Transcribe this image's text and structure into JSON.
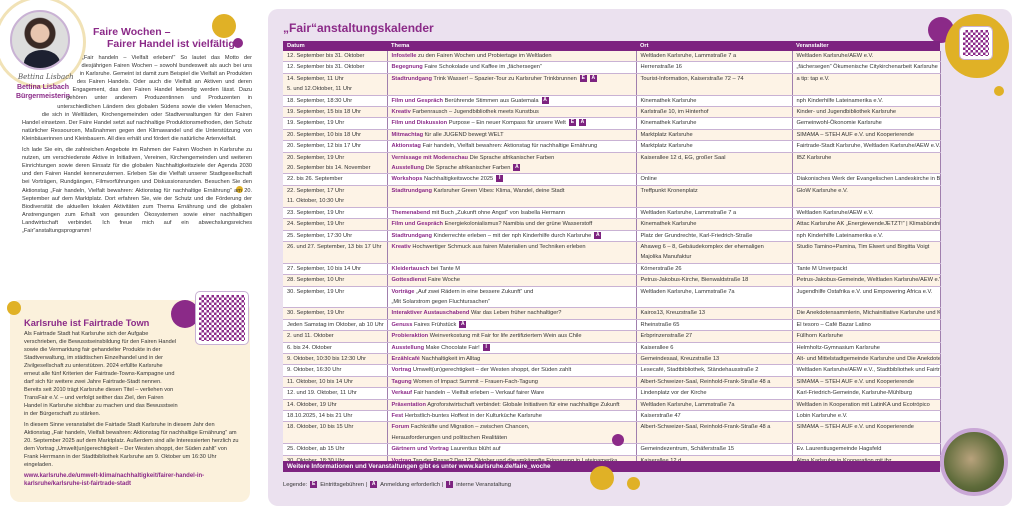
{
  "intro": {
    "signature": "Bettina Lisbach",
    "name": "Bettina Lisbach",
    "role": "Bürgermeisterin",
    "title_line1": "Faire Wochen –",
    "title_line2": "Fairer Handel ist vielfältig",
    "p1": "„Fair handeln – Vielfalt erleben!“ So lautet das Motto der diesjährigen Fairen Wochen – sowohl bundesweit als auch bei uns in Karlsruhe. Gemeint ist damit zum Beispiel die Vielfalt an Produkten des Fairen Handels. Oder auch die Vielfalt an Aktiven und deren Engagement, das den Fairen Handel lebendig werden lässt. Dazu gehören unter anderem Produzentinnen und Produzenten in unterschiedlichen Ländern des globalen Südens sowie die vielen Menschen, die sich in Weltläden, Kirchengemeinden oder Stadtverwaltungen für den Fairen Handel einsetzen. Der Faire Handel setzt auf nachhaltige Produktionsmethoden, den Schutz natürlicher Ressourcen, Maßnahmen gegen den Klimawandel und die Unterstützung von Kleinbäuerinnen und Kleinbauern. All dies erhält und fördert die natürliche Artenvielfalt.",
    "p2": "Ich lade Sie ein, die zahlreichen Angebote im Rahmen der Fairen Wochen in Karlsruhe zu nutzen, um verschiedenste Aktive in Initiativen, Vereinen, Kirchengemeinden und weiteren Einrichtungen sowie deren Einsatz für die globalen Nachhaltigkeitsziele der Agenda 2030 und den Fairen Handel kennenzulernen. Erleben Sie die Vielfalt unserer Stadtgesellschaft bei Vorträgen, Rundgängen, Filmvorführungen und Diskussionsrunden. Besuchen Sie den Aktionstag „Fair handeln, Vielfalt bewahren: Aktionstag für nachhaltige Ernährung“ am 20. September auf dem Marktplatz. Dort erfahren Sie, wie der Schutz und die Förderung der Biodiversität die aktuellen lokalen Aktivitäten zum Thema Ernährung und die globalen Anstrengungen zum Erhalt von gesunden Ökosystemen sowie einer nachhaltigen Landwirtschaft verbindet. Ich freue mich auf ein abwechslungsreiches „Fair“anstaltungsprogramm!"
  },
  "fairtrade": {
    "title": "Karlsruhe ist Fairtrade Town",
    "p1": "Als Fairtrade Stadt hat Karlsruhe sich der Aufgabe verschrieben, die Bewusstseinsbildung für den Fairen Handel sowie die Vermarktung fair gehandelter Produkte in der Stadtverwaltung, im städtischen Einzelhandel und in der Zivilgesellschaft zu unterstützen. 2024 erfüllte Karlsruhe erneut alle fünf Kriterien der Fairtrade-Towns-Kampagne und darf sich für weitere zwei Jahre Fairtrade-Stadt nennen. Bereits seit 2010 trägt Karlsruhe diesen Titel – verliehen von TransFair e.V. – und verfolgt seither das Ziel, den Fairen Handel in Karlsruhe sichtbar zu machen und das Bewusstsein in der Bürgerschaft zu stärken.",
    "p2": "In diesem Sinne veranstaltet die Fairtade Stadt Karlsruhe in diesem Jahr den Aktionstag „Fair handeln, Vielfalt bewahren: Aktionstag für nachhaltige Ernährung“ am 20. September 2025 auf dem Marktplatz. Außerdem sind alle Interessierten herzlich zu dem Vortrag „Umwelt(un)gerechtigkeit – Der Westen shoppt, der Süden zahlt“ von Frank Herrmann in der Stadtbibliothek Karlsruhe am 9. Oktober um 16:30 Uhr eingeladen.",
    "url": "www.karlsruhe.de/umwelt-klima/nachhaltigkeit/fairer-handel-in-karlsruhe/karlsruhe-ist-fairtrade-stadt"
  },
  "colors": {
    "accent": "#7d2380",
    "gold": "#e0b126",
    "background": "#ebe1ef",
    "row": "#fdf3e6"
  },
  "calendar": {
    "title": "„Fair“anstaltungskalender",
    "columns": [
      "Datum",
      "Thema",
      "Ort",
      "Veranstalter"
    ],
    "rows": [
      {
        "date": [
          "12. September bis 31. Oktober"
        ],
        "thema": [
          {
            "kw": "Infostelle",
            "text": " zu den Fairen Wochen und Probiertage im Weltladen",
            "badges": []
          }
        ],
        "ort": [
          "Weltladen Karlsruhe, Lammstraße 7 a"
        ],
        "org": [
          "Weltladen Karlsruhe/AEW e.V."
        ]
      },
      {
        "date": [
          "12. September bis 31. Oktober"
        ],
        "thema": [
          {
            "kw": "Begegnung",
            "text": " Faire Schokolade und Kaffee im „fächersegen“",
            "badges": []
          }
        ],
        "ort": [
          "Herrenstraße 16"
        ],
        "org": [
          "„fächersegen“ Ökumenische Citykirchenarbeit Karlsruhe"
        ]
      },
      {
        "date": [
          "14. September, 11 Uhr",
          "5. und 12.Oktober, 11 Uhr"
        ],
        "thema": [
          {
            "kw": "Stadtrundgang",
            "text": " Trink Wasser! – Spazier-Tour zu Karlsruher Trinkbrunnen",
            "badges": [
              "E",
              "A"
            ]
          }
        ],
        "ort": [
          "Tourist-Information, Kaiserstraße 72 – 74"
        ],
        "org": [
          "a tip: tap e.V."
        ]
      },
      {
        "date": [
          "18. September, 18:30 Uhr"
        ],
        "thema": [
          {
            "kw": "Film und Gespräch",
            "text": " Berührende Stimmen aus Guatemala",
            "badges": [
              "A"
            ]
          }
        ],
        "ort": [
          "Kinemathek Karlsruhe"
        ],
        "org": [
          "nph Kinderhilfe Lateinamerika e.V."
        ]
      },
      {
        "date": [
          "19. September, 15 bis 18 Uhr"
        ],
        "thema": [
          {
            "kw": "Kreativ",
            "text": " Farbenrausch – Jugendbibliothek meets Kunstbus",
            "badges": []
          }
        ],
        "ort": [
          "Karlstraße 10, im Hinterhof"
        ],
        "org": [
          "Kinder- und Jugendbibliothek Karlsruhe"
        ]
      },
      {
        "date": [
          "19. September, 19 Uhr"
        ],
        "thema": [
          {
            "kw": "Film und Diskussion",
            "text": " Purpose – Ein neuer Kompass für unsere Welt",
            "badges": [
              "E",
              "A"
            ]
          }
        ],
        "ort": [
          "Kinemathek Karlsruhe"
        ],
        "org": [
          "Gemeinwohl-Ökonomie Karlsruhe"
        ]
      },
      {
        "date": [
          "20. September, 10 bis 18 Uhr"
        ],
        "thema": [
          {
            "kw": "Mitmachtag",
            "text": " für alle JUGEND bewegt WELT",
            "badges": []
          }
        ],
        "ort": [
          "Marktplatz Karlsruhe"
        ],
        "org": [
          "SIMAMA – STEH AUF e.V. und Kooperierende"
        ]
      },
      {
        "date": [
          "20. September, 12 bis 17 Uhr"
        ],
        "thema": [
          {
            "kw": "Aktionstag",
            "text": " Fair handeln, Vielfalt bewahren: Aktionstag für nachhaltige Ernährung",
            "badges": []
          }
        ],
        "ort": [
          "Marktplatz Karlsruhe"
        ],
        "org": [
          "Fairtrade-Stadt Karlsruhe, Weltladen Karlsruhe/AEW e.V."
        ]
      },
      {
        "date": [
          "20. September, 19 Uhr",
          "20. September bis 14. November"
        ],
        "thema": [
          {
            "kw": "Vernissage mit Modenschau",
            "text": " Die Sprache afrikanischer Farben",
            "badges": []
          },
          {
            "kw": "Ausstellung",
            "text": " Die Sprache afrikanischer Farben",
            "badges": [
              "A"
            ]
          }
        ],
        "ort": [
          "Kaiserallee 12 d, EG, großer Saal"
        ],
        "org": [
          "IBZ Karlsruhe"
        ]
      },
      {
        "date": [
          "22. bis 26. September"
        ],
        "thema": [
          {
            "kw": "Workshops",
            "text": " Nachhaltigkeitswoche 2025",
            "badges": [
              "I"
            ]
          }
        ],
        "ort": [
          "Online"
        ],
        "org": [
          "Diakonisches Werk der Evangelischen Landeskirche in Baden e.V."
        ]
      },
      {
        "date": [
          "22.  September, 17 Uhr",
          "11. Oktober, 10:30 Uhr"
        ],
        "thema": [
          {
            "kw": "Stadtrundgang",
            "text": " Karlsruher Green Vibes: Klima, Wandel, deine Stadt",
            "badges": []
          }
        ],
        "ort": [
          "Treffpunkt Kronenplatz"
        ],
        "org": [
          "GloW Karlsruhe e.V."
        ]
      },
      {
        "date": [
          "23. September, 19 Uhr"
        ],
        "thema": [
          {
            "kw": "Themenabend",
            "text": " mit Buch „Zukunft ohne Angst“ von Isabella Hermann",
            "badges": []
          }
        ],
        "ort": [
          "Weltladen Karlsruhe, Lammstraße 7 a"
        ],
        "org": [
          "Weltladen Karlsruhe/AEW e.V."
        ]
      },
      {
        "date": [
          "24. September, 19 Uhr"
        ],
        "thema": [
          {
            "kw": "Film und Gespräch",
            "text": " Energiekolonialismus? Namibia und der grüne Wasserstoff",
            "badges": []
          }
        ],
        "ort": [
          "Kinemathek Karlsruhe"
        ],
        "org": [
          "Attac Karlsruhe AK „EnergiewendeJETZT!“ | Klimabündnis Karlsruhe | Kinemathek"
        ]
      },
      {
        "date": [
          "25. September, 17:30 Uhr"
        ],
        "thema": [
          {
            "kw": "Stadtrundgang",
            "text": " Kinderrechte erleben – mit der nph Kinderhilfe durch Karlsruhe",
            "badges": [
              "A"
            ]
          }
        ],
        "ort": [
          "Platz der Grundrechte, Karl-Friedrich-Straße"
        ],
        "org": [
          "nph Kinderhilfe Lateinamerika e.V."
        ]
      },
      {
        "date": [
          "26. und 27. September, 13 bis 17 Uhr"
        ],
        "thema": [
          {
            "kw": "Kreativ",
            "text": " Hochwertiger Schmuck aus fairen Materialien und Techniken erleben",
            "badges": []
          }
        ],
        "ort": [
          "Ahaweg 6 – 8, Gebäudekomplex der ehemaligen",
          "Majolika Manufaktur"
        ],
        "org": [
          "Studio Tamino+Pamina, Tim Elwert und Birgitta Voigt"
        ]
      },
      {
        "date": [
          "27. September, 10 bis 14 Uhr"
        ],
        "thema": [
          {
            "kw": "Kleidertausch",
            "text": " bei Tante M",
            "badges": []
          }
        ],
        "ort": [
          "Körnerstraße 26"
        ],
        "org": [
          "Tante M Unverpackt"
        ]
      },
      {
        "date": [
          "28. September, 10 Uhr"
        ],
        "thema": [
          {
            "kw": "Gottesdienst",
            "text": " Faire Woche",
            "badges": []
          }
        ],
        "ort": [
          "Petrus-Jakobus-Kirche, Bienwaldstraße 18"
        ],
        "org": [
          "Petrus-Jakobus-Gemeinde, Weltladen Karlsruhe/AEW e.V."
        ]
      },
      {
        "date": [
          "30. September, 19 Uhr"
        ],
        "thema": [
          {
            "kw": "Vorträge",
            "text": " „Auf zwei Rädern in eine bessere Zukunft“ und",
            "badges": []
          },
          {
            "kw": "",
            "text": "„Mit Solarstrom gegen Fluchtursachen“",
            "badges": []
          }
        ],
        "ort": [
          "Weltladen Karlsruhe, Lammstraße 7a"
        ],
        "org": [
          "Jugendhilfe Ostafrika e.V. und Empowering Africa e.V."
        ]
      },
      {
        "date": [
          "30. September, 19 Uhr"
        ],
        "thema": [
          {
            "kw": "Interaktiver Austauschabend",
            "text": " War das Leben früher nachhaltiger?",
            "badges": []
          }
        ],
        "ort": [
          "Kairos13, Kreuzstraße 13"
        ],
        "org": [
          "Die Anekdotensammlerin, Michainitiative Karlsruhe und Kairos13"
        ]
      },
      {
        "date": [
          "Jeden Samstag im Oktober, ab 10 Uhr"
        ],
        "thema": [
          {
            "kw": "Genuss",
            "text": " Faires Frühstück",
            "badges": [
              "A"
            ]
          }
        ],
        "ort": [
          "Rheinstraße 65"
        ],
        "org": [
          "El tesoro – Café Bazar Latino"
        ]
      },
      {
        "date": [
          "2. und 11. Oktober"
        ],
        "thema": [
          {
            "kw": "Probieraktion",
            "text": " Weinverkostung mit Fair for life zertifiziertem Wein aus Chile",
            "badges": []
          }
        ],
        "ort": [
          "Erbprinzenstraße 27"
        ],
        "org": [
          "Füllhorn Karlsruhe"
        ]
      },
      {
        "date": [
          "6. bis 24. Oktober"
        ],
        "thema": [
          {
            "kw": "Ausstellung",
            "text": " Make Chocolate Fair!",
            "badges": [
              "I"
            ]
          }
        ],
        "ort": [
          "Kaiserallee 6"
        ],
        "org": [
          "Helmholtz-Gymnasium Karlsruhe"
        ]
      },
      {
        "date": [
          "9. Oktober, 10:30 bis 12:30 Uhr"
        ],
        "thema": [
          {
            "kw": "Erzählcafé",
            "text": " Nachhaltigkeit im Alltag",
            "badges": []
          }
        ],
        "ort": [
          "Gemeindesaal, Kreuzstraße 13"
        ],
        "org": [
          "Alt- und Mittelstadtgemeinde Karlsruhe und Die Anekdotensammlerin"
        ]
      },
      {
        "date": [
          "9. Oktober, 16:30 Uhr"
        ],
        "thema": [
          {
            "kw": "Vortrag",
            "text": " Umwelt(un)gerechtigkeit – der Westen shoppt, der Süden zahlt",
            "badges": []
          }
        ],
        "ort": [
          "Lesecafé, Stadtbibliothek, Ständehausstraße 2"
        ],
        "org": [
          "Weltladen Karlsruhe/AEW e.V., Stadtbibliothek und Fairtrade-Stadt Karlsruhe"
        ]
      },
      {
        "date": [
          "11. Oktober, 10 bis 14 Uhr"
        ],
        "thema": [
          {
            "kw": "Tagung",
            "text": " Women of Impact Summit – Frauen-Fach-Tagung",
            "badges": []
          }
        ],
        "ort": [
          "Albert-Schweizer-Saal, Reinhold-Frank-Straße 48 a"
        ],
        "org": [
          "SIMAMA – STEH AUF e.V. und Kooperierende"
        ]
      },
      {
        "date": [
          "12. und 19. Oktober, 11 Uhr"
        ],
        "thema": [
          {
            "kw": "Verkauf",
            "text": " Fair handeln – Vielfalt erleben – Verkauf fairer Ware",
            "badges": []
          }
        ],
        "ort": [
          "Lindenplatz vor der Kirche"
        ],
        "org": [
          "Karl-Friedrich-Gemeinde, Karlsruhe-Mühlburg"
        ]
      },
      {
        "date": [
          "14. Oktober, 19 Uhr"
        ],
        "thema": [
          {
            "kw": "Präsentation",
            "text": " Agroforstwirtschaft verbindet: Globale Initiativen für eine nachhaltige Zukunft",
            "badges": []
          }
        ],
        "ort": [
          "Weltladen Karlsruhe, Lammstraße 7a"
        ],
        "org": [
          "Weltladen in Kooperation mit LatinKA und Ecotrópico"
        ]
      },
      {
        "date": [
          "18.10.2025, 14 bis 21 Uhr"
        ],
        "thema": [
          {
            "kw": "Fest",
            "text": " Herbstlich-buntes Hoffest in der Kulturküche Karlsruhe",
            "badges": []
          }
        ],
        "ort": [
          "Kaiserstraße 47"
        ],
        "org": [
          "Lobin Karlsruhe e.V."
        ]
      },
      {
        "date": [
          "18. Oktober, 10 bis 15 Uhr"
        ],
        "thema": [
          {
            "kw": "Forum",
            "text": " Fachkräfte und Migration – zwischen Chancen,",
            "badges": []
          },
          {
            "kw": "",
            "text": "Herausforderungen und politischen Realitäten",
            "badges": []
          }
        ],
        "ort": [
          "Albert-Schweizer-Saal, Reinhold-Frank-Straße 48 a"
        ],
        "org": [
          "SIMAMA – STEH AUF e.V. und Kooperierende"
        ]
      },
      {
        "date": [
          "25. Oktober, ab 15 Uhr"
        ],
        "thema": [
          {
            "kw": "Gärtnern und Vortrag",
            "text": " Laurentius blüht auf",
            "badges": []
          }
        ],
        "ort": [
          "Gemeindezentrum, Schäferstraße 15"
        ],
        "org": [
          "Ev. Laurentiusgemeinde Hagsfeld"
        ]
      },
      {
        "date": [
          "30. Oktober, 18:30 Uhr"
        ],
        "thema": [
          {
            "kw": "Vortrag",
            "text": " Tag der Rasse? Der 12. Oktober und die umkämpfte Erinnerung in Lateinamerika",
            "badges": []
          }
        ],
        "ort": [
          "Kaiserallee 12 d"
        ],
        "org": [
          "Alma Karlsruhe in Kooperation mit ibz"
        ]
      }
    ],
    "footer": "Weitere Informationen und Veranstaltungen gibt es unter www.karlsruhe.de/faire_woche",
    "legend": {
      "label": "Legende:",
      "items": [
        {
          "badge": "E",
          "text": "Eintrittsgebühren"
        },
        {
          "badge": "A",
          "text": "Anmeldung erforderlich"
        },
        {
          "badge": "I",
          "text": "interne Veranstaltung"
        }
      ]
    }
  }
}
